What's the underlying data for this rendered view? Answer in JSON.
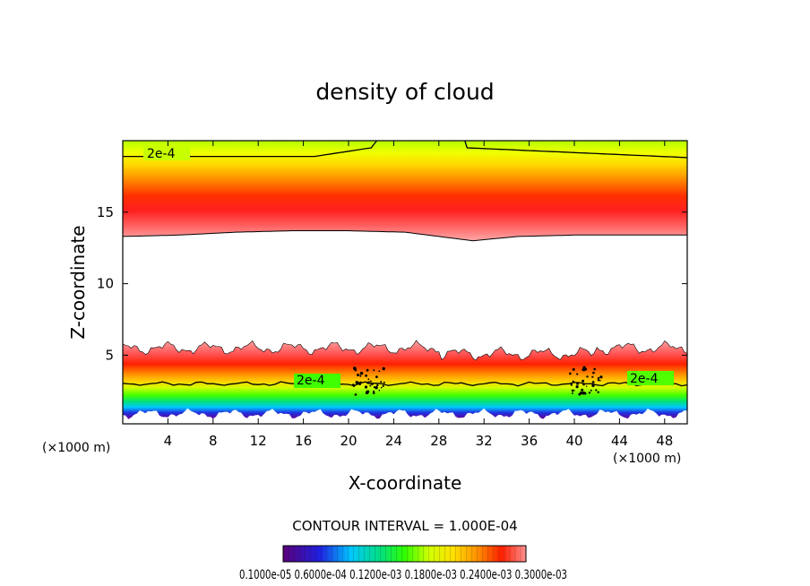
{
  "chart_data": {
    "type": "heatmap",
    "title": "density of cloud",
    "xlabel": "X-coordinate",
    "ylabel": "Z-coordinate",
    "x_unit": "(×1000 m)",
    "y_unit": "(×1000 m)",
    "xlim": [
      0,
      50
    ],
    "ylim": [
      0.2,
      20
    ],
    "x_ticks": [
      4,
      8,
      12,
      16,
      20,
      24,
      28,
      32,
      36,
      40,
      44,
      48
    ],
    "y_ticks": [
      5,
      10,
      15
    ],
    "contour_interval_text": "CONTOUR INTERVAL =  1.000E-04",
    "contour_labels": [
      "2e-4",
      "2e-4",
      "2e-4"
    ],
    "colorbar_text": "0.1000e-05 0.6000e-04 0.1200e-03 0.1800e-03 0.2400e-03 0.3000e-03",
    "colorbar_ticks": [
      1e-06,
      6e-05,
      0.00012,
      0.00018,
      0.00024,
      0.0003
    ],
    "colorscale": [
      "#5a007a",
      "#2020e0",
      "#00c8ff",
      "#00e080",
      "#20ff00",
      "#c8ff00",
      "#ffe000",
      "#ff9000",
      "#ff2000",
      "#ff9090"
    ],
    "upper_layer": {
      "base_z": [
        13.3,
        13.4,
        13.6,
        13.7,
        13.7,
        13.6,
        13.2,
        13.0,
        13.3,
        13.4,
        13.4
      ],
      "x": [
        0,
        5,
        10,
        15,
        20,
        25,
        29,
        31,
        35,
        40,
        50
      ],
      "peak_z": 15.3,
      "contour_2e4_z": 18.9
    },
    "lower_layer": {
      "top_z": 5.5,
      "bottom_z": 0.9,
      "peak_z": 4.5,
      "contour_2e4_z": 3.0
    }
  }
}
